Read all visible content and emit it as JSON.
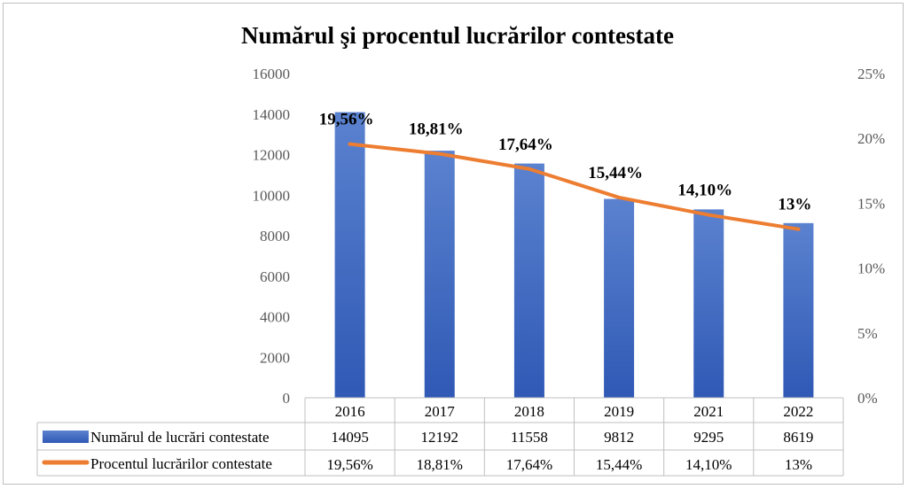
{
  "chart_data": {
    "title": "Numărul şi procentul lucrărilor contestate",
    "categories": [
      "2016",
      "2017",
      "2018",
      "2019",
      "2021",
      "2022"
    ],
    "series": [
      {
        "name": "Numărul de lucrări contestate",
        "type": "bar",
        "axis": "left",
        "color": "#4472C4",
        "values": [
          14095,
          12192,
          11558,
          9812,
          9295,
          8619
        ],
        "table_labels": [
          "14095",
          "12192",
          "11558",
          "9812",
          "9295",
          "8619"
        ]
      },
      {
        "name": "Procentul lucrărilor contestate",
        "type": "line",
        "axis": "right",
        "color": "#ED7D31",
        "values": [
          19.56,
          18.81,
          17.64,
          15.44,
          14.1,
          13
        ],
        "labels": [
          "19,56%",
          "18,81%",
          "17,64%",
          "15,44%",
          "14,10%",
          "13%"
        ],
        "table_labels": [
          "19,56%",
          "18,81%",
          "17,64%",
          "15,44%",
          "14,10%",
          "13%"
        ]
      }
    ],
    "left_axis": {
      "min": 0,
      "max": 16000,
      "ticks": [
        "0",
        "2000",
        "4000",
        "6000",
        "8000",
        "10000",
        "12000",
        "14000",
        "16000"
      ]
    },
    "right_axis": {
      "min": 0,
      "max": 25,
      "ticks": [
        "0%",
        "5%",
        "10%",
        "15%",
        "20%",
        "25%"
      ]
    },
    "grid": false,
    "legend": "data-table"
  }
}
